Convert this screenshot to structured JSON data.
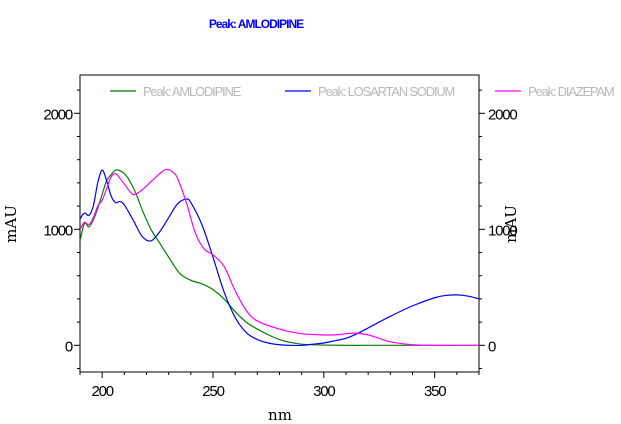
{
  "colors": {
    "title": "#0000ff",
    "frame": "#000000",
    "legend_text": "#b8b8b8"
  },
  "chart_data": {
    "type": "line",
    "title": "Peak: AMLODIPINE",
    "xlabel": "nm",
    "ylabel": "mAU",
    "y2label": "mAU",
    "xlim": [
      190,
      370
    ],
    "ylim": [
      -230,
      2330
    ],
    "xticks": [
      200,
      250,
      300,
      350
    ],
    "yticks": [
      0,
      1000,
      2000
    ],
    "y2ticks": [
      0,
      1000,
      2000
    ],
    "legend_position": "top",
    "grid": false,
    "series": [
      {
        "name": "Peak: AMLODIPINE",
        "color": "#008000",
        "x": [
          190,
          192,
          194,
          196,
          198,
          200,
          202,
          204,
          206,
          208,
          210,
          212,
          215,
          218,
          222,
          226,
          230,
          235,
          240,
          245,
          250,
          255,
          260,
          265,
          270,
          275,
          280,
          285,
          290,
          295,
          300,
          310,
          320,
          330,
          340,
          350,
          360,
          370
        ],
        "y": [
          900,
          1050,
          1020,
          1080,
          1180,
          1300,
          1420,
          1470,
          1510,
          1505,
          1480,
          1430,
          1320,
          1170,
          1000,
          880,
          760,
          620,
          560,
          530,
          480,
          400,
          290,
          200,
          140,
          90,
          50,
          25,
          10,
          5,
          2,
          0,
          0,
          0,
          0,
          0,
          0,
          0
        ]
      },
      {
        "name": "Peak: LOSARTAN SODIUM",
        "color": "#0000ff",
        "x": [
          190,
          192,
          194,
          196,
          198,
          200,
          202,
          204,
          206,
          208,
          210,
          214,
          218,
          222,
          226,
          230,
          234,
          238,
          240,
          245,
          250,
          255,
          260,
          265,
          270,
          275,
          280,
          285,
          290,
          295,
          300,
          305,
          310,
          315,
          320,
          330,
          340,
          350,
          355,
          360,
          363,
          366,
          370
        ],
        "y": [
          1090,
          1140,
          1120,
          1200,
          1400,
          1510,
          1420,
          1290,
          1230,
          1240,
          1210,
          1080,
          940,
          900,
          980,
          1100,
          1220,
          1260,
          1230,
          1040,
          760,
          460,
          240,
          110,
          50,
          20,
          5,
          0,
          0,
          10,
          20,
          40,
          60,
          100,
          150,
          250,
          340,
          410,
          430,
          435,
          430,
          420,
          400
        ]
      },
      {
        "name": "Peak: DIAZEPAM",
        "color": "#ff00ff",
        "x": [
          190,
          192,
          194,
          196,
          198,
          200,
          202,
          204,
          206,
          208,
          210,
          214,
          218,
          222,
          226,
          228,
          230,
          232,
          234,
          238,
          242,
          246,
          250,
          255,
          260,
          265,
          270,
          280,
          290,
          300,
          305,
          310,
          315,
          320,
          325,
          330,
          340,
          350,
          360,
          370
        ],
        "y": [
          1000,
          1060,
          1040,
          1100,
          1200,
          1250,
          1350,
          1450,
          1480,
          1440,
          1390,
          1300,
          1340,
          1410,
          1480,
          1510,
          1515,
          1490,
          1440,
          1230,
          970,
          830,
          780,
          680,
          470,
          300,
          210,
          140,
          100,
          90,
          90,
          100,
          105,
          90,
          60,
          30,
          5,
          0,
          0,
          0
        ]
      }
    ]
  }
}
